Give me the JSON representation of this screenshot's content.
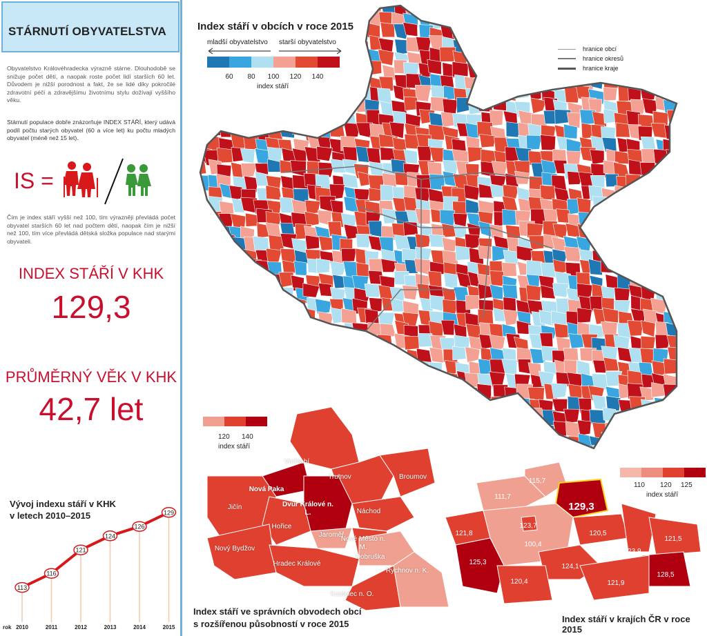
{
  "sidebar": {
    "title": "STÁRNUTÍ OBYVATELSTVA",
    "intro": "Obyvatelstvo Královéhradecka výrazně stárne. Dlouhodobě se snižuje počet dětí, a naopak roste počet lidí starších 60 let. Důvodem je nižší porodnost a fakt, že se lidé díky pokročilé zdravotní péči a zdravějšímu životnímu stylu dožívají vyššího věku.",
    "definition": "Stárnutí populace dobře znázorňuje INDEX STÁŘÍ, který udává podíl počtu starých obyvatel (60 a více let) ku počtu mladých obyvatel (méně než 15 let).",
    "formula_label": "IS =",
    "explanation": "Čím je index stáří vyšší než 100, tím výrazněji převládá počet obyvatel starších 60 let nad počtem dětí, naopak čím je nižší než 100, tím více převládá dětská složka populace nad starými obyvateli.",
    "index_heading": "INDEX STÁŘÍ V KHK",
    "index_value": "129,3",
    "age_heading": "PRŮMĚRNÝ VĚK V KHK",
    "age_value": "42,7 let",
    "chart_title_1": "Vývoj indexu stáří v KHK",
    "chart_title_2": "v letech 2010–2015"
  },
  "chart_data": {
    "type": "line",
    "x_prefix": "rok",
    "x": [
      "2010",
      "2011",
      "2012",
      "2013",
      "2014",
      "2015"
    ],
    "values": [
      113,
      116,
      121,
      124,
      126,
      129
    ],
    "title": "Vývoj indexu stáří v KHK v letech 2010–2015",
    "ylim": [
      110,
      130
    ],
    "color": "#d7191c"
  },
  "main_map": {
    "title": "Index stáří v obcích v roce 2015",
    "younger_label": "mladší obyvatelstvo",
    "older_label": "starší obyvatelstvo",
    "scale_labels": [
      "60",
      "80",
      "100",
      "120",
      "140"
    ],
    "scale_caption": "index stáří",
    "scale_colors": [
      "#1f78b4",
      "#3aa6e0",
      "#aee0f2",
      "#f4a193",
      "#e34a33",
      "#c0101a"
    ],
    "lines": [
      "hranice obcí",
      "hranice okresů",
      "hranice kraje"
    ]
  },
  "orp_map": {
    "title_1": "Index stáří ve správních obvodech obcí",
    "title_2": "s rozšířenou působností v roce 2015",
    "scale_labels": [
      "120",
      "140"
    ],
    "scale_caption": "index stáří",
    "regions": [
      "Vrchlabí",
      "Trutnov",
      "Broumov",
      "Nová Paka",
      "Dvůr Králové n. L.",
      "Jičín",
      "Hořice",
      "Náchod",
      "Jaroměř",
      "Nové Město n. M.",
      "Nový Bydžov",
      "Hradec Králové",
      "Dobruška",
      "Rychnov n. K.",
      "Kostelec n. O."
    ]
  },
  "cz_map": {
    "title": "Index stáří v krajích ČR v roce 2015",
    "scale_labels": [
      "110",
      "120",
      "125"
    ],
    "scale_caption": "index stáří",
    "values": [
      "115,7",
      "111,7",
      "129,3",
      "121,8",
      "123,7",
      "100,4",
      "120,5",
      "121,5",
      "125,3",
      "123,9",
      "124,1",
      "120,4",
      "128,5",
      "121,9"
    ]
  }
}
